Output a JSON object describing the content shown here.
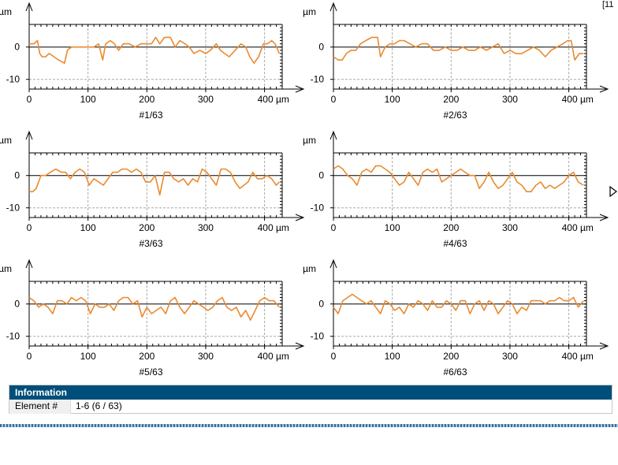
{
  "corner_text": "[11",
  "chart_data": [
    {
      "type": "line",
      "title": "#1/63",
      "ylabel": "µm",
      "xlabel_unit": "µm",
      "xlim": [
        0,
        430
      ],
      "ylim": [
        -13,
        7
      ],
      "xticks": [
        0,
        100,
        200,
        300,
        400
      ],
      "yticks": [
        0,
        -10
      ],
      "grid": true,
      "series": [
        {
          "color": "#ea8a2e",
          "x": [
            0,
            8,
            14,
            18,
            22,
            28,
            34,
            42,
            50,
            60,
            65,
            72,
            80,
            90,
            100,
            110,
            118,
            125,
            130,
            138,
            145,
            152,
            160,
            170,
            180,
            190,
            200,
            208,
            215,
            222,
            230,
            240,
            248,
            256,
            265,
            272,
            280,
            290,
            300,
            308,
            318,
            325,
            332,
            340,
            350,
            360,
            368,
            375,
            382,
            390,
            398,
            405,
            412,
            418,
            425
          ],
          "y": [
            1,
            1,
            2,
            -2,
            -3,
            -3,
            -2,
            -3,
            -4,
            -5,
            -1,
            0,
            0,
            0,
            0,
            0,
            1,
            -4,
            1,
            2,
            1,
            -1,
            1,
            1,
            0,
            1,
            1,
            1,
            3,
            1,
            3,
            3,
            0,
            2,
            1,
            0,
            -2,
            -1,
            -2,
            -1,
            1,
            -1,
            -2,
            -3,
            -1,
            1,
            0,
            -3,
            -5,
            -3,
            1,
            1,
            2,
            1,
            -2
          ]
        }
      ]
    },
    {
      "type": "line",
      "title": "#2/63",
      "ylabel": "µm",
      "xlabel_unit": "µm",
      "xlim": [
        0,
        430
      ],
      "ylim": [
        -13,
        7
      ],
      "xticks": [
        0,
        100,
        200,
        300,
        400
      ],
      "yticks": [
        0,
        -10
      ],
      "grid": true,
      "series": [
        {
          "color": "#ea8a2e",
          "x": [
            0,
            8,
            15,
            22,
            30,
            38,
            46,
            55,
            65,
            75,
            80,
            88,
            96,
            104,
            112,
            120,
            130,
            140,
            150,
            160,
            170,
            180,
            190,
            200,
            210,
            220,
            230,
            240,
            250,
            260,
            270,
            280,
            290,
            300,
            310,
            320,
            330,
            340,
            350,
            360,
            370,
            380,
            390,
            398,
            404,
            410,
            418,
            425
          ],
          "y": [
            -3,
            -4,
            -4,
            -2,
            -1,
            -1,
            1,
            2,
            3,
            3,
            -3,
            0,
            1,
            1,
            2,
            2,
            1,
            0,
            1,
            1,
            -1,
            -1,
            0,
            -1,
            -1,
            0,
            -1,
            -1,
            0,
            -1,
            0,
            1,
            -2,
            -1,
            -2,
            -2,
            -1,
            0,
            -1,
            -3,
            -1,
            0,
            1,
            2,
            2,
            -4,
            -2,
            -2
          ]
        }
      ]
    },
    {
      "type": "line",
      "title": "#3/63",
      "ylabel": "µm",
      "xlabel_unit": "µm",
      "xlim": [
        0,
        430
      ],
      "ylim": [
        -13,
        7
      ],
      "xticks": [
        0,
        100,
        200,
        300,
        400
      ],
      "yticks": [
        0,
        -10
      ],
      "grid": true,
      "series": [
        {
          "color": "#ea8a2e",
          "x": [
            0,
            6,
            12,
            20,
            28,
            36,
            45,
            55,
            62,
            70,
            78,
            86,
            94,
            102,
            110,
            118,
            126,
            134,
            142,
            150,
            158,
            166,
            174,
            182,
            190,
            198,
            206,
            214,
            222,
            230,
            238,
            246,
            254,
            262,
            270,
            278,
            286,
            294,
            302,
            310,
            318,
            326,
            334,
            342,
            350,
            358,
            365,
            372,
            380,
            388,
            396,
            404,
            412,
            420,
            425
          ],
          "y": [
            -5,
            -5,
            -4,
            0,
            0,
            1,
            2,
            1,
            1,
            -1,
            1,
            2,
            1,
            -3,
            -1,
            -2,
            -3,
            -1,
            1,
            1,
            2,
            2,
            1,
            2,
            1,
            -2,
            -2,
            0,
            -6,
            1,
            1,
            -1,
            -2,
            -1,
            -3,
            -1,
            -2,
            2,
            1,
            -1,
            -3,
            2,
            2,
            1,
            -2,
            -4,
            -3,
            -2,
            1,
            -1,
            -1,
            0,
            -1,
            -3,
            -2
          ]
        }
      ]
    },
    {
      "type": "line",
      "title": "#4/63",
      "ylabel": "µm",
      "xlabel_unit": "µm",
      "xlim": [
        0,
        430
      ],
      "ylim": [
        -13,
        7
      ],
      "xticks": [
        0,
        100,
        200,
        300,
        400
      ],
      "yticks": [
        0,
        -10
      ],
      "grid": true,
      "series": [
        {
          "color": "#ea8a2e",
          "x": [
            0,
            8,
            16,
            24,
            32,
            40,
            48,
            56,
            64,
            72,
            80,
            88,
            96,
            104,
            112,
            120,
            128,
            136,
            144,
            152,
            160,
            168,
            176,
            184,
            192,
            200,
            208,
            216,
            224,
            232,
            240,
            248,
            256,
            264,
            272,
            280,
            288,
            296,
            304,
            312,
            320,
            328,
            336,
            344,
            352,
            360,
            368,
            376,
            384,
            392,
            400,
            408,
            416,
            425
          ],
          "y": [
            2,
            3,
            2,
            0,
            -1,
            -3,
            1,
            2,
            1,
            3,
            3,
            2,
            1,
            -1,
            -3,
            -2,
            1,
            -1,
            -3,
            1,
            2,
            1,
            2,
            -2,
            -1,
            0,
            1,
            2,
            1,
            0,
            0,
            -4,
            -2,
            1,
            -2,
            -4,
            -3,
            -1,
            1,
            -2,
            -3,
            -5,
            -5,
            -3,
            -2,
            -4,
            -3,
            -4,
            -3,
            -2,
            0,
            1,
            -2,
            -3
          ]
        }
      ]
    },
    {
      "type": "line",
      "title": "#5/63",
      "ylabel": "µm",
      "xlabel_unit": "µm",
      "xlim": [
        0,
        430
      ],
      "ylim": [
        -13,
        7
      ],
      "xticks": [
        0,
        100,
        200,
        300,
        400
      ],
      "yticks": [
        0,
        -10
      ],
      "grid": true,
      "series": [
        {
          "color": "#ea8a2e",
          "x": [
            0,
            8,
            16,
            24,
            32,
            40,
            48,
            56,
            64,
            72,
            80,
            88,
            96,
            104,
            112,
            120,
            128,
            136,
            144,
            152,
            160,
            168,
            176,
            184,
            192,
            200,
            208,
            216,
            224,
            232,
            240,
            248,
            256,
            264,
            272,
            280,
            288,
            296,
            304,
            312,
            320,
            328,
            336,
            344,
            352,
            360,
            368,
            376,
            384,
            392,
            400,
            408,
            416,
            425
          ],
          "y": [
            2,
            1,
            -1,
            0,
            -1,
            -3,
            1,
            1,
            0,
            2,
            1,
            2,
            1,
            -3,
            0,
            -1,
            -1,
            0,
            -2,
            1,
            2,
            2,
            0,
            1,
            -4,
            -1,
            -3,
            -2,
            -1,
            -3,
            1,
            2,
            -1,
            -3,
            -1,
            1,
            0,
            -1,
            -2,
            -1,
            1,
            2,
            -1,
            -2,
            -1,
            -4,
            -2,
            -5,
            -2,
            1,
            2,
            1,
            1,
            -1
          ]
        }
      ]
    },
    {
      "type": "line",
      "title": "#6/63",
      "ylabel": "µm",
      "xlabel_unit": "µm",
      "xlim": [
        0,
        430
      ],
      "ylim": [
        -13,
        7
      ],
      "xticks": [
        0,
        100,
        200,
        300,
        400
      ],
      "yticks": [
        0,
        -10
      ],
      "grid": true,
      "series": [
        {
          "color": "#ea8a2e",
          "x": [
            0,
            8,
            16,
            24,
            32,
            40,
            48,
            56,
            64,
            72,
            80,
            88,
            96,
            104,
            112,
            120,
            128,
            136,
            144,
            152,
            160,
            168,
            176,
            184,
            192,
            200,
            208,
            216,
            224,
            232,
            240,
            248,
            256,
            264,
            272,
            280,
            288,
            296,
            304,
            312,
            320,
            328,
            336,
            344,
            352,
            360,
            368,
            376,
            384,
            392,
            400,
            408,
            416,
            425
          ],
          "y": [
            -1,
            -3,
            1,
            2,
            3,
            2,
            1,
            0,
            1,
            -1,
            -3,
            1,
            0,
            -2,
            -1,
            -3,
            0,
            -1,
            1,
            0,
            -2,
            1,
            -1,
            -1,
            1,
            0,
            -2,
            1,
            1,
            -3,
            0,
            1,
            -2,
            1,
            0,
            -3,
            -1,
            1,
            0,
            -3,
            -1,
            -2,
            1,
            1,
            1,
            0,
            1,
            1,
            2,
            1,
            1,
            2,
            -1,
            1
          ]
        }
      ]
    }
  ],
  "info": {
    "header": "Information",
    "label": "Element #",
    "value": "1-6 (6 / 63)"
  },
  "colors": {
    "line": "#ea8a2e",
    "header_bg": "#004f7a"
  }
}
